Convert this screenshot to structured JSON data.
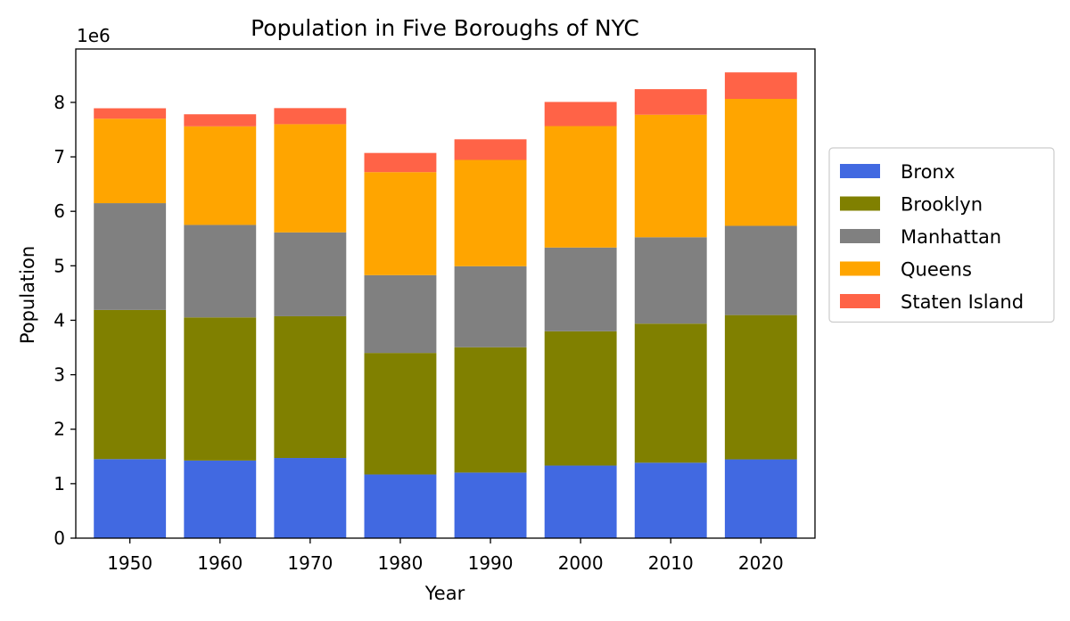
{
  "chart_data": {
    "type": "bar",
    "stacked": true,
    "title": "Population in Five Boroughs of NYC",
    "xlabel": "Year",
    "ylabel": "Population",
    "y_offset_label": "1e6",
    "y_scale": 1000000,
    "ylim": [
      0,
      8980000
    ],
    "yticks": [
      0,
      1,
      2,
      3,
      4,
      5,
      6,
      7,
      8
    ],
    "categories": [
      "1950",
      "1960",
      "1970",
      "1980",
      "1990",
      "2000",
      "2010",
      "2020"
    ],
    "legend_position": "right",
    "series": [
      {
        "name": "Bronx",
        "color": "#4169e1",
        "values": [
          1451277,
          1424815,
          1471701,
          1168972,
          1203789,
          1332650,
          1385108,
          1446788
        ]
      },
      {
        "name": "Brooklyn",
        "color": "#808000",
        "values": [
          2738175,
          2627319,
          2602012,
          2230936,
          2300664,
          2465326,
          2552911,
          2648452
        ]
      },
      {
        "name": "Manhattan",
        "color": "#808080",
        "values": [
          1960101,
          1698281,
          1539233,
          1428285,
          1487536,
          1537195,
          1585873,
          1638281
        ]
      },
      {
        "name": "Queens",
        "color": "#ffa500",
        "values": [
          1550849,
          1809578,
          1986473,
          1891325,
          1951598,
          2229379,
          2250002,
          2330295
        ]
      },
      {
        "name": "Staten Island",
        "color": "#ff6347",
        "values": [
          191555,
          221991,
          295443,
          352121,
          378977,
          443728,
          468730,
          487155
        ]
      }
    ]
  }
}
